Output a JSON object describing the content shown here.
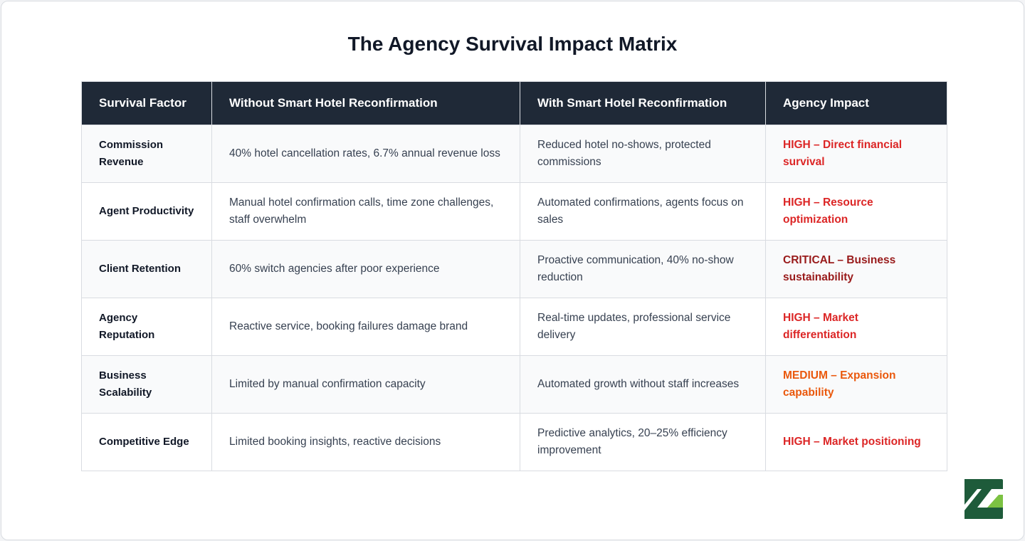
{
  "title": "The Agency Survival Impact Matrix",
  "table": {
    "headers": [
      "Survival Factor",
      "Without Smart Hotel Reconfirmation",
      "With Smart Hotel Reconfirmation",
      "Agency Impact"
    ],
    "rows": [
      {
        "factor": "Commission Revenue",
        "without": "40% hotel cancellation rates, 6.7% annual revenue loss",
        "with": "Reduced hotel no-shows, protected commissions",
        "impact": "HIGH – Direct financial survival",
        "impact_color": "#dc2626"
      },
      {
        "factor": "Agent Productivity",
        "without": "Manual hotel confirmation calls, time zone challenges, staff overwhelm",
        "with": "Automated confirmations, agents focus on sales",
        "impact": "HIGH – Resource optimization",
        "impact_color": "#dc2626"
      },
      {
        "factor": "Client Retention",
        "without": "60% switch agencies after poor experience",
        "with": "Proactive communication, 40% no-show reduction",
        "impact": "CRITICAL – Business sustainability",
        "impact_color": "#991b1b"
      },
      {
        "factor": "Agency Reputation",
        "without": "Reactive service, booking failures damage brand",
        "with": "Real-time updates, professional service delivery",
        "impact": "HIGH – Market differentiation",
        "impact_color": "#dc2626"
      },
      {
        "factor": "Business Scalability",
        "without": "Limited by manual confirmation capacity",
        "with": "Automated growth without staff increases",
        "impact": "MEDIUM – Expansion capability",
        "impact_color": "#ea580c"
      },
      {
        "factor": "Competitive Edge",
        "without": "Limited booking insights, reactive decisions",
        "with": "Predictive analytics, 20–25% efficiency improvement",
        "impact": "HIGH – Market positioning",
        "impact_color": "#dc2626"
      }
    ]
  }
}
